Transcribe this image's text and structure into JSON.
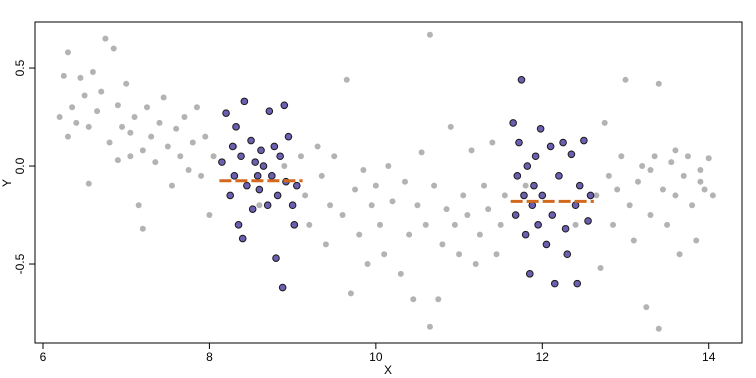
{
  "chart_data": {
    "type": "scatter",
    "xlabel": "X",
    "ylabel": "Y",
    "xlim": [
      5.904,
      14.4
    ],
    "ylim": [
      -0.903,
      0.735
    ],
    "xticks": [
      6,
      8,
      10,
      12,
      14
    ],
    "yticks": [
      {
        "value": -0.5,
        "label": "-0.5"
      },
      {
        "value": 0,
        "label": "0.0"
      },
      {
        "value": 0.5,
        "label": "0.5"
      }
    ],
    "series": [
      {
        "color": "#b3b3b3",
        "x": [
          6.2,
          6.25,
          6.3,
          6.3,
          6.35,
          6.4,
          6.45,
          6.5,
          6.55,
          6.55,
          6.6,
          6.65,
          6.7,
          6.75,
          6.8,
          6.85,
          6.9,
          6.95,
          7.0,
          7.05,
          7.1,
          7.15,
          7.2,
          7.25,
          7.3,
          7.35,
          7.4,
          7.45,
          7.5,
          7.55,
          7.6,
          7.65,
          7.7,
          7.75,
          7.8,
          7.85,
          7.9,
          7.95,
          8.0,
          8.05,
          7.2,
          7.05,
          6.9,
          9.1,
          9.15,
          9.2,
          9.3,
          9.35,
          9.4,
          9.45,
          9.5,
          9.6,
          9.65,
          9.7,
          9.75,
          9.8,
          9.85,
          9.9,
          9.95,
          10.0,
          10.05,
          10.1,
          10.15,
          10.2,
          10.3,
          10.35,
          10.4,
          10.45,
          10.5,
          10.55,
          10.6,
          10.65,
          10.65,
          10.7,
          10.75,
          10.8,
          10.85,
          10.9,
          10.95,
          11.0,
          11.05,
          11.1,
          11.15,
          11.2,
          11.25,
          11.3,
          11.35,
          11.4,
          11.45,
          11.5,
          11.55,
          12.65,
          12.7,
          12.75,
          12.8,
          12.85,
          12.9,
          12.95,
          13.0,
          13.05,
          13.1,
          13.15,
          13.2,
          13.25,
          13.3,
          13.35,
          13.4,
          13.4,
          13.45,
          13.5,
          13.55,
          13.6,
          13.65,
          13.7,
          13.75,
          13.8,
          13.85,
          13.9,
          13.95,
          14.0,
          14.05,
          13.3,
          13.6,
          13.9,
          8.3,
          8.6,
          8.9,
          11.8,
          12.2,
          12.4
        ],
        "values": [
          0.25,
          0.46,
          0.58,
          0.15,
          0.3,
          0.22,
          0.45,
          0.36,
          -0.09,
          0.2,
          0.48,
          0.28,
          0.38,
          0.65,
          0.12,
          0.6,
          0.31,
          0.2,
          0.42,
          0.17,
          0.25,
          -0.2,
          0.08,
          0.3,
          0.15,
          0.02,
          0.22,
          0.35,
          0.1,
          -0.1,
          0.19,
          0.05,
          0.25,
          -0.02,
          0.12,
          0.3,
          -0.05,
          0.15,
          -0.25,
          0.05,
          -0.32,
          0.05,
          0.03,
          0.05,
          -0.15,
          -0.3,
          0.1,
          -0.05,
          -0.4,
          -0.2,
          0.05,
          -0.25,
          0.44,
          -0.65,
          -0.12,
          -0.35,
          -0.02,
          -0.5,
          -0.2,
          -0.1,
          -0.3,
          -0.45,
          0.0,
          -0.18,
          -0.55,
          -0.08,
          -0.35,
          -0.68,
          -0.2,
          0.07,
          -0.3,
          0.67,
          -0.82,
          -0.1,
          -0.68,
          -0.4,
          -0.22,
          0.2,
          -0.3,
          -0.45,
          -0.15,
          -0.25,
          0.08,
          -0.5,
          -0.35,
          -0.1,
          -0.22,
          0.12,
          -0.45,
          -0.3,
          -0.15,
          -0.15,
          -0.52,
          0.22,
          -0.05,
          -0.3,
          -0.12,
          0.05,
          0.44,
          -0.2,
          -0.38,
          -0.08,
          0.0,
          -0.72,
          -0.25,
          0.05,
          -0.83,
          0.42,
          -0.12,
          -0.3,
          0.02,
          -0.15,
          -0.45,
          -0.05,
          0.05,
          -0.2,
          -0.38,
          -0.08,
          -0.12,
          0.04,
          -0.15,
          -0.02,
          0.08,
          -0.02,
          0.1,
          -0.2,
          0.0,
          -0.1,
          -0.05,
          -0.3
        ]
      },
      {
        "color": "#6a5fb0",
        "edgecolor": "#1a1a1a",
        "x": [
          8.15,
          8.2,
          8.25,
          8.28,
          8.3,
          8.32,
          8.35,
          8.38,
          8.4,
          8.42,
          8.45,
          8.5,
          8.52,
          8.55,
          8.6,
          8.62,
          8.65,
          8.7,
          8.72,
          8.75,
          8.78,
          8.8,
          8.82,
          8.85,
          8.88,
          8.9,
          8.92,
          8.95,
          9.0,
          9.02,
          9.05,
          8.58,
          11.65,
          11.68,
          11.7,
          11.72,
          11.75,
          11.78,
          11.8,
          11.82,
          11.85,
          11.88,
          11.9,
          11.92,
          11.95,
          11.98,
          12.0,
          12.05,
          12.1,
          12.12,
          12.15,
          12.2,
          12.25,
          12.28,
          12.3,
          12.35,
          12.4,
          12.42,
          12.45,
          12.5,
          12.55,
          12.58
        ],
        "values": [
          0.02,
          0.27,
          -0.15,
          0.1,
          -0.05,
          0.2,
          -0.3,
          0.05,
          -0.37,
          0.33,
          -0.1,
          0.13,
          -0.22,
          0.02,
          -0.12,
          0.08,
          0.0,
          -0.2,
          0.28,
          -0.05,
          0.1,
          -0.47,
          -0.15,
          0.05,
          -0.62,
          0.31,
          -0.08,
          0.15,
          -0.2,
          -0.3,
          -0.1,
          -0.05,
          0.22,
          -0.25,
          -0.05,
          0.12,
          0.44,
          -0.15,
          -0.35,
          0.0,
          -0.55,
          -0.2,
          -0.1,
          0.05,
          -0.3,
          0.19,
          -0.15,
          -0.4,
          0.1,
          -0.25,
          -0.6,
          -0.05,
          0.12,
          -0.32,
          -0.45,
          0.06,
          -0.2,
          -0.6,
          -0.1,
          0.13,
          -0.28,
          -0.15
        ]
      }
    ],
    "lines": [
      {
        "color": "#d2691e",
        "x": [
          8.12,
          9.12
        ],
        "values": [
          -0.075,
          -0.075
        ]
      },
      {
        "color": "#d2691e",
        "x": [
          11.62,
          12.62
        ],
        "values": [
          -0.18,
          -0.18
        ]
      }
    ]
  }
}
